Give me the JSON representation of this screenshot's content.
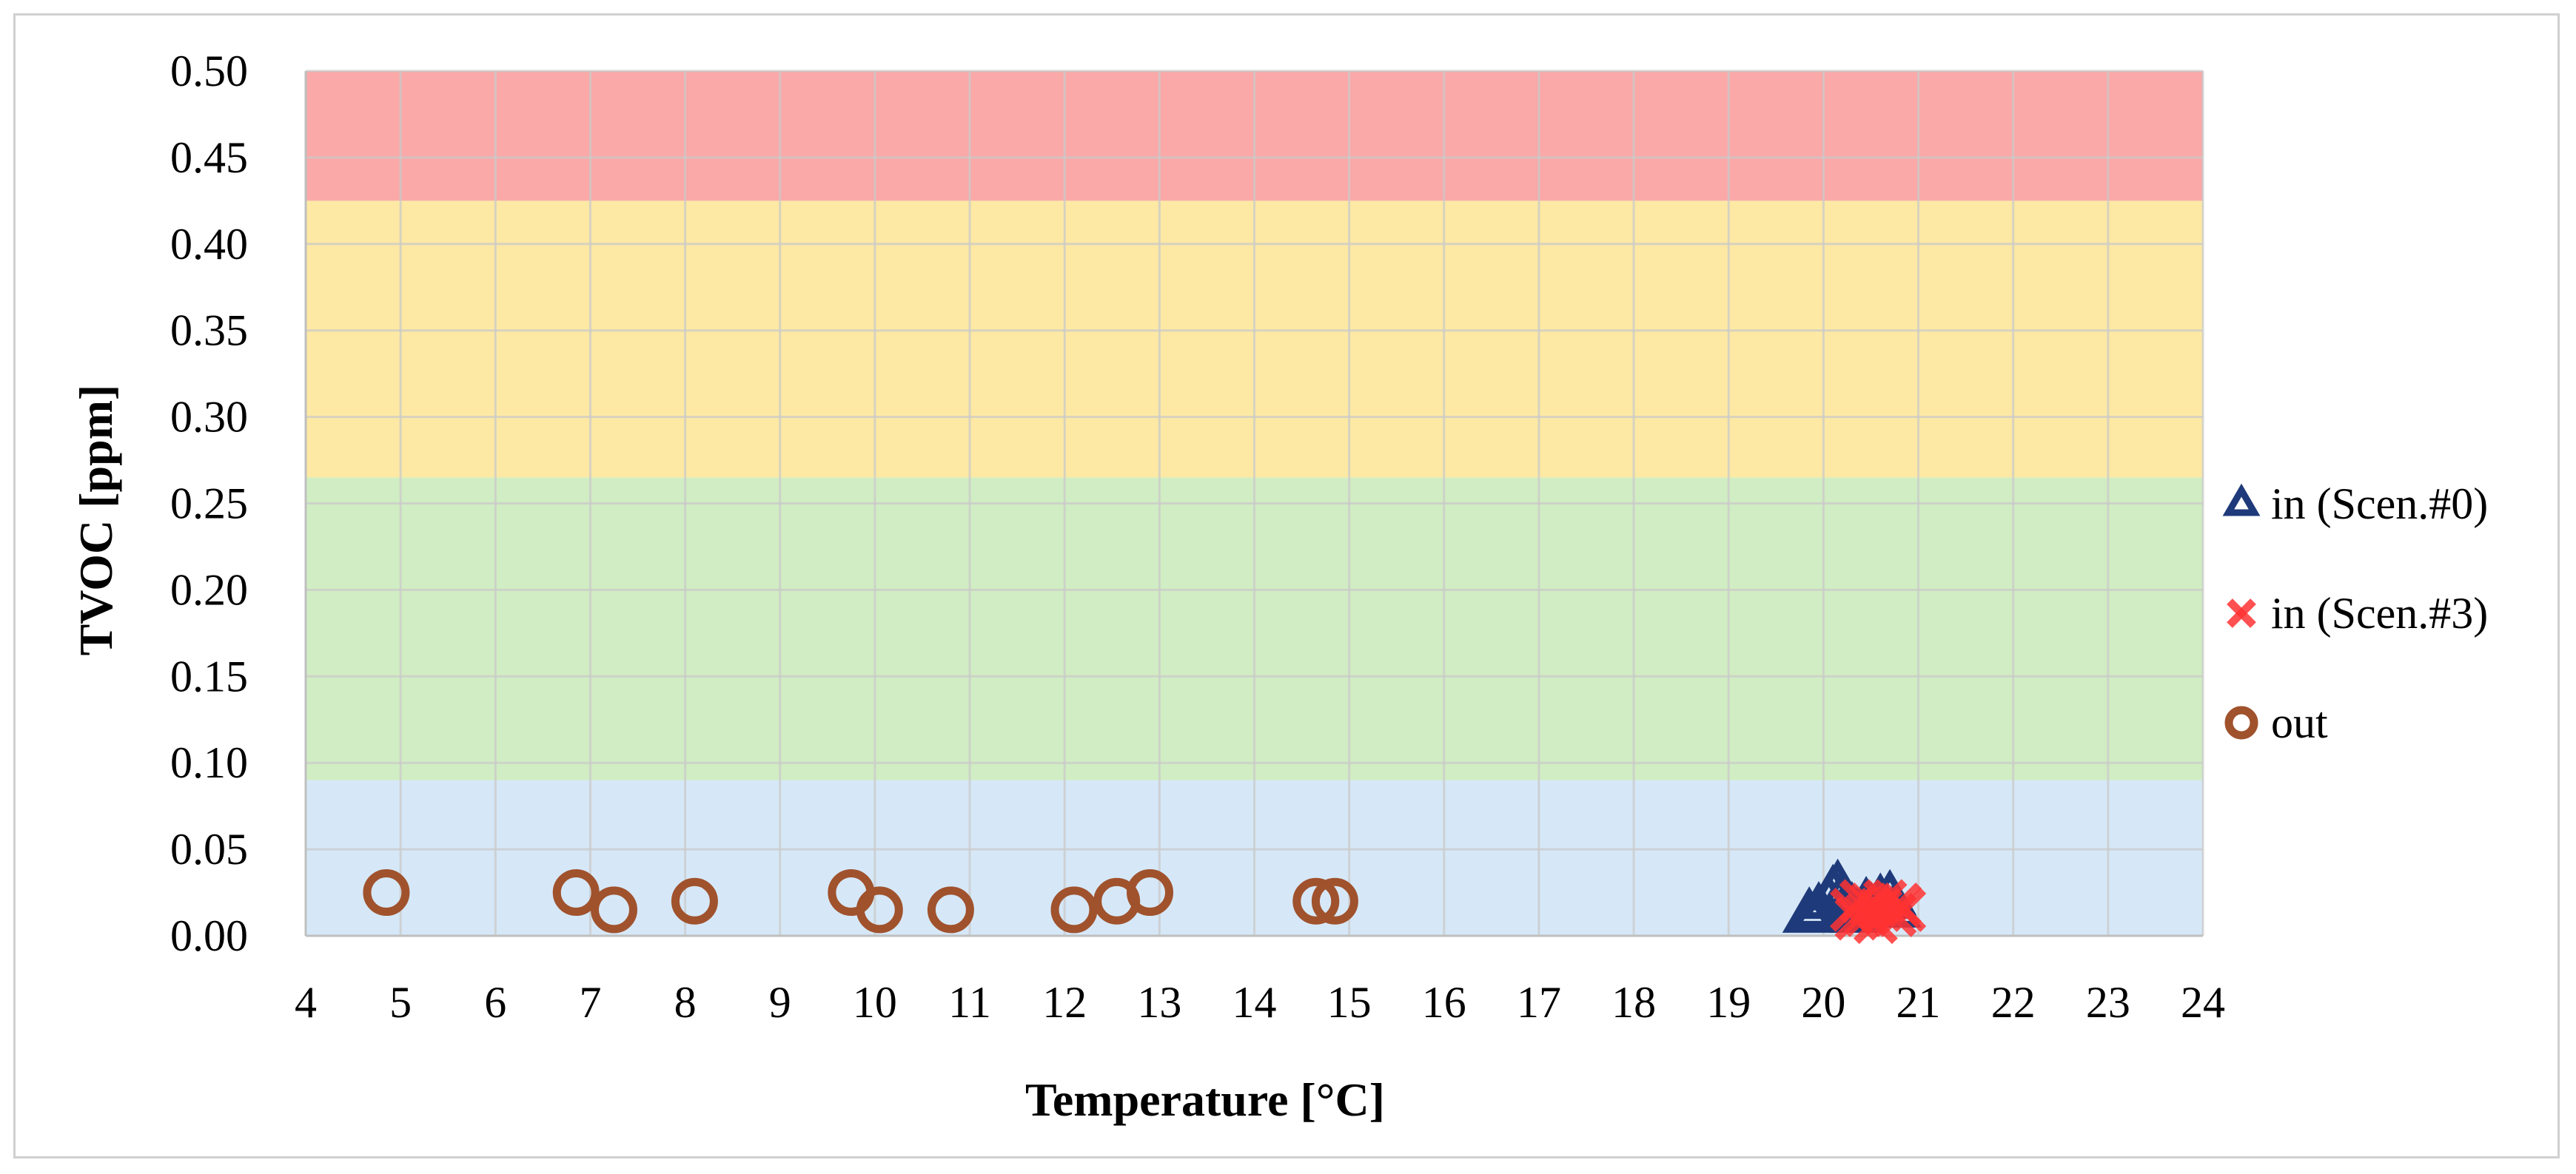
{
  "chart_data": {
    "type": "scatter",
    "title": "",
    "xlabel": "Temperature [°C]",
    "ylabel": "TVOC [ppm]",
    "xlim": [
      4,
      24
    ],
    "ylim": [
      0,
      0.5
    ],
    "x_ticks": [
      "4",
      "5",
      "6",
      "7",
      "8",
      "9",
      "10",
      "11",
      "12",
      "13",
      "14",
      "15",
      "16",
      "17",
      "18",
      "19",
      "20",
      "21",
      "22",
      "23",
      "24"
    ],
    "y_ticks": [
      "0.00",
      "0.05",
      "0.10",
      "0.15",
      "0.20",
      "0.25",
      "0.30",
      "0.35",
      "0.40",
      "0.45",
      "0.50"
    ],
    "grid": true,
    "legend_position": "right",
    "background_bands": [
      {
        "from": 0.0,
        "to": 0.09,
        "color": "#d6e8f7"
      },
      {
        "from": 0.09,
        "to": 0.265,
        "color": "#d1edc3"
      },
      {
        "from": 0.265,
        "to": 0.425,
        "color": "#fde9a3"
      },
      {
        "from": 0.425,
        "to": 0.5,
        "color": "#fba8a8"
      }
    ],
    "series": [
      {
        "name": "in (Scen.#0)",
        "marker": "triangle",
        "color": "#1f3a7a",
        "points": [
          {
            "x": 19.85,
            "y": 0.012
          },
          {
            "x": 19.95,
            "y": 0.015
          },
          {
            "x": 20.05,
            "y": 0.02
          },
          {
            "x": 20.1,
            "y": 0.025
          },
          {
            "x": 20.15,
            "y": 0.028
          },
          {
            "x": 20.2,
            "y": 0.022
          },
          {
            "x": 20.25,
            "y": 0.018
          },
          {
            "x": 20.3,
            "y": 0.015
          },
          {
            "x": 20.35,
            "y": 0.012
          },
          {
            "x": 20.45,
            "y": 0.018
          },
          {
            "x": 20.5,
            "y": 0.015
          },
          {
            "x": 20.6,
            "y": 0.02
          },
          {
            "x": 20.7,
            "y": 0.022
          },
          {
            "x": 20.75,
            "y": 0.015
          }
        ]
      },
      {
        "name": "in (Scen.#3)",
        "marker": "x",
        "color": "#ff3333",
        "points": [
          {
            "x": 20.3,
            "y": 0.015
          },
          {
            "x": 20.35,
            "y": 0.01
          },
          {
            "x": 20.4,
            "y": 0.02
          },
          {
            "x": 20.45,
            "y": 0.012
          },
          {
            "x": 20.5,
            "y": 0.018
          },
          {
            "x": 20.55,
            "y": 0.008
          },
          {
            "x": 20.6,
            "y": 0.015
          },
          {
            "x": 20.65,
            "y": 0.02
          },
          {
            "x": 20.75,
            "y": 0.012
          },
          {
            "x": 20.8,
            "y": 0.018
          },
          {
            "x": 20.85,
            "y": 0.015
          }
        ]
      },
      {
        "name": "out",
        "marker": "circle",
        "color": "#a0522d",
        "points": [
          {
            "x": 4.85,
            "y": 0.025
          },
          {
            "x": 6.85,
            "y": 0.025
          },
          {
            "x": 7.25,
            "y": 0.015
          },
          {
            "x": 8.1,
            "y": 0.02
          },
          {
            "x": 9.75,
            "y": 0.025
          },
          {
            "x": 10.05,
            "y": 0.015
          },
          {
            "x": 10.8,
            "y": 0.015
          },
          {
            "x": 12.1,
            "y": 0.015
          },
          {
            "x": 12.55,
            "y": 0.02
          },
          {
            "x": 12.9,
            "y": 0.025
          },
          {
            "x": 14.65,
            "y": 0.02
          },
          {
            "x": 14.85,
            "y": 0.02
          }
        ]
      }
    ]
  }
}
